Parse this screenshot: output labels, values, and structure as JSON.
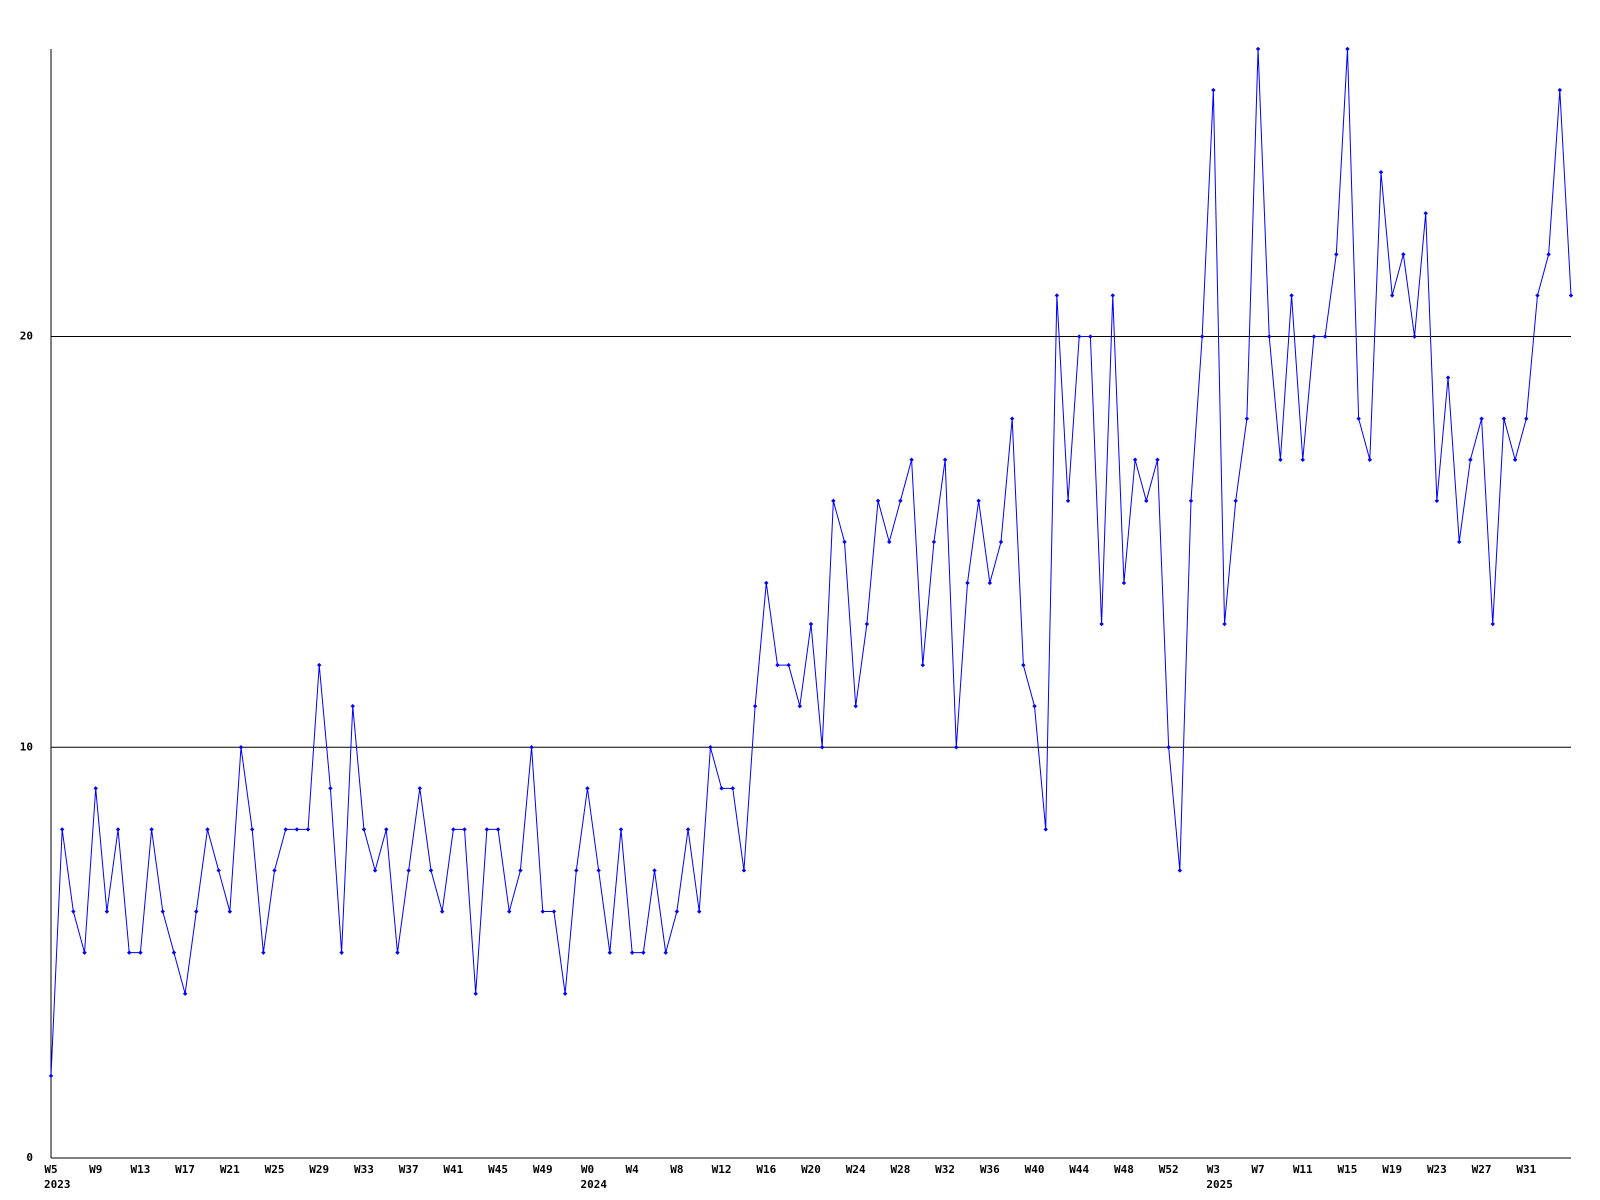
{
  "chart_data": {
    "type": "line",
    "categories": [
      "W5",
      null,
      null,
      null,
      "W9",
      null,
      null,
      null,
      "W13",
      null,
      null,
      null,
      "W17",
      null,
      null,
      null,
      "W21",
      null,
      null,
      null,
      "W25",
      null,
      null,
      null,
      "W29",
      null,
      null,
      null,
      "W33",
      null,
      null,
      null,
      "W37",
      null,
      null,
      null,
      "W41",
      null,
      null,
      null,
      "W45",
      null,
      null,
      null,
      "W49",
      null,
      null,
      null,
      "W0",
      null,
      null,
      null,
      "W4",
      null,
      null,
      null,
      "W8",
      null,
      null,
      null,
      "W12",
      null,
      null,
      null,
      "W16",
      null,
      null,
      null,
      "W20",
      null,
      null,
      null,
      "W24",
      null,
      null,
      null,
      "W28",
      null,
      null,
      null,
      "W32",
      null,
      null,
      null,
      "W36",
      null,
      null,
      null,
      "W40",
      null,
      null,
      null,
      "W44",
      null,
      null,
      null,
      "W48",
      null,
      null,
      null,
      "W52",
      null,
      null,
      null,
      "W3",
      null,
      null,
      null,
      "W7",
      null,
      null,
      null,
      "W11",
      null,
      null,
      null,
      "W15",
      null,
      null,
      null,
      "W19",
      null,
      null,
      null,
      "W23",
      null,
      null,
      null,
      "W27",
      null,
      null,
      null,
      "W31",
      null,
      null,
      null,
      null
    ],
    "years": [
      "2023",
      null,
      null,
      null,
      null,
      null,
      null,
      null,
      null,
      null,
      null,
      null,
      null,
      null,
      null,
      null,
      null,
      null,
      null,
      null,
      null,
      null,
      null,
      null,
      null,
      null,
      null,
      null,
      null,
      null,
      null,
      null,
      null,
      null,
      null,
      null,
      null,
      null,
      null,
      null,
      null,
      null,
      null,
      null,
      null,
      null,
      null,
      null,
      "2024",
      null,
      null,
      null,
      null,
      null,
      null,
      null,
      null,
      null,
      null,
      null,
      null,
      null,
      null,
      null,
      null,
      null,
      null,
      null,
      null,
      null,
      null,
      null,
      null,
      null,
      null,
      null,
      null,
      null,
      null,
      null,
      null,
      null,
      null,
      null,
      null,
      null,
      null,
      null,
      null,
      null,
      null,
      null,
      null,
      null,
      null,
      null,
      null,
      null,
      null,
      null,
      null,
      null,
      null,
      null,
      "2025",
      null,
      null,
      null,
      null,
      null,
      null,
      null,
      null,
      null,
      null,
      null,
      null,
      null,
      null,
      null,
      null,
      null,
      null,
      null,
      null,
      null,
      null,
      null,
      null,
      null,
      null,
      null,
      null,
      null,
      null,
      null,
      null
    ],
    "series": [
      {
        "color": "#0000ff",
        "values": [
          2,
          8,
          6,
          5,
          9,
          6,
          8,
          5,
          5,
          8,
          6,
          5,
          4,
          6,
          8,
          7,
          6,
          10,
          8,
          5,
          7,
          8,
          8,
          8,
          12,
          9,
          5,
          11,
          8,
          7,
          8,
          5,
          7,
          9,
          7,
          6,
          8,
          8,
          4,
          8,
          8,
          6,
          7,
          10,
          6,
          6,
          4,
          7,
          9,
          7,
          5,
          8,
          5,
          5,
          7,
          5,
          6,
          8,
          6,
          10,
          9,
          9,
          7,
          11,
          14,
          12,
          12,
          11,
          13,
          10,
          16,
          15,
          11,
          13,
          16,
          15,
          16,
          17,
          12,
          15,
          17,
          10,
          14,
          16,
          14,
          15,
          18,
          12,
          11,
          8,
          21,
          16,
          20,
          20,
          13,
          21,
          14,
          17,
          16,
          17,
          10,
          7,
          16,
          20,
          26,
          13,
          16,
          18,
          27,
          20,
          17,
          21,
          17,
          20,
          20,
          22,
          27,
          18,
          17,
          24,
          21,
          22,
          20,
          23,
          16,
          19,
          15,
          17,
          18,
          13,
          18,
          17,
          18,
          21,
          22,
          26,
          21
        ]
      }
    ],
    "ylim": [
      0,
      27
    ],
    "yticks": [
      0,
      10,
      20
    ],
    "grid": true,
    "grid_color": "#000000"
  }
}
